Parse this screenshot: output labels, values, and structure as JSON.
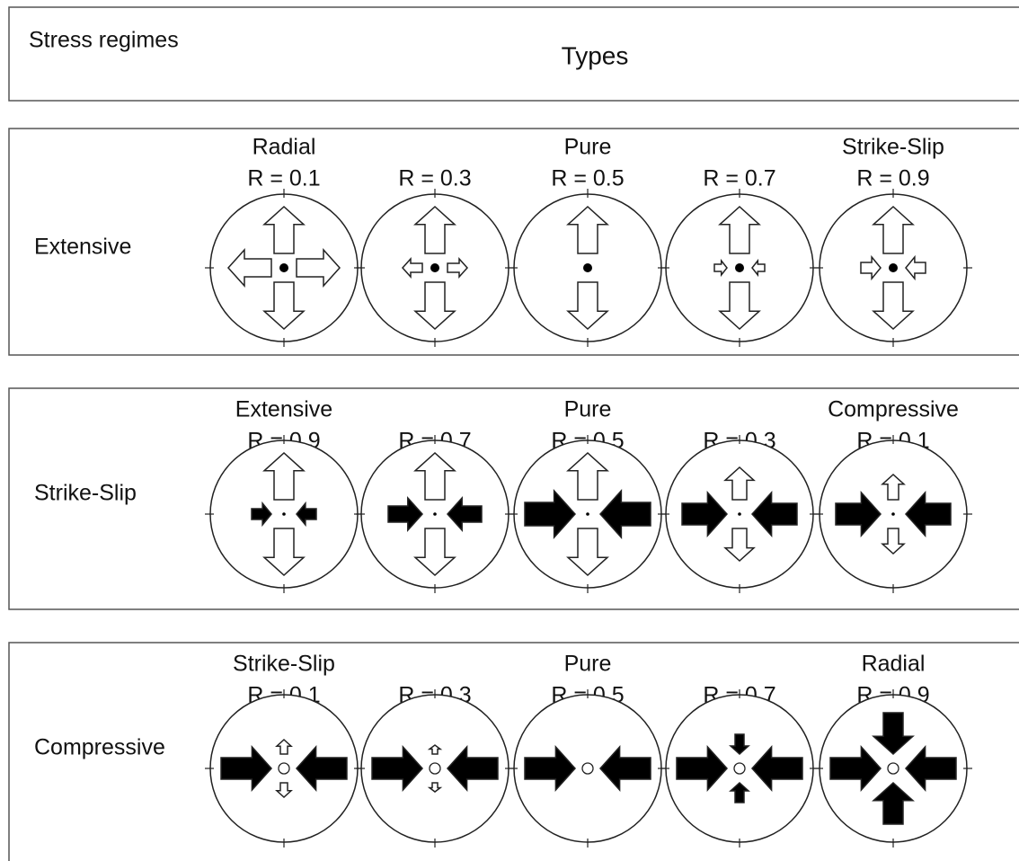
{
  "header": {
    "title": "Stress regimes",
    "types": "Types"
  },
  "rows": [
    {
      "regime": "Extensive",
      "items": [
        {
          "type": "Radial",
          "r": "R = 0.1"
        },
        {
          "r": "R = 0.3"
        },
        {
          "type": "Pure",
          "r": "R = 0.5"
        },
        {
          "r": "R = 0.7"
        },
        {
          "type": "Strike-Slip",
          "r": "R = 0.9"
        }
      ]
    },
    {
      "regime": "Strike-Slip",
      "items": [
        {
          "type": "Extensive",
          "r": "R = 0.9"
        },
        {
          "r": "R = 0.7"
        },
        {
          "type": "Pure",
          "r": "R = 0.5"
        },
        {
          "r": "R = 0.3"
        },
        {
          "type": "Compressive",
          "r": "R = 0.1"
        }
      ]
    },
    {
      "regime": "Compressive",
      "items": [
        {
          "type": "Strike-Slip",
          "r": "R = 0.1"
        },
        {
          "r": "R = 0.3"
        },
        {
          "type": "Pure",
          "r": "R = 0.5"
        },
        {
          "r": "R = 0.7"
        },
        {
          "type": "Radial",
          "r": "R = 0.9"
        }
      ]
    }
  ]
}
